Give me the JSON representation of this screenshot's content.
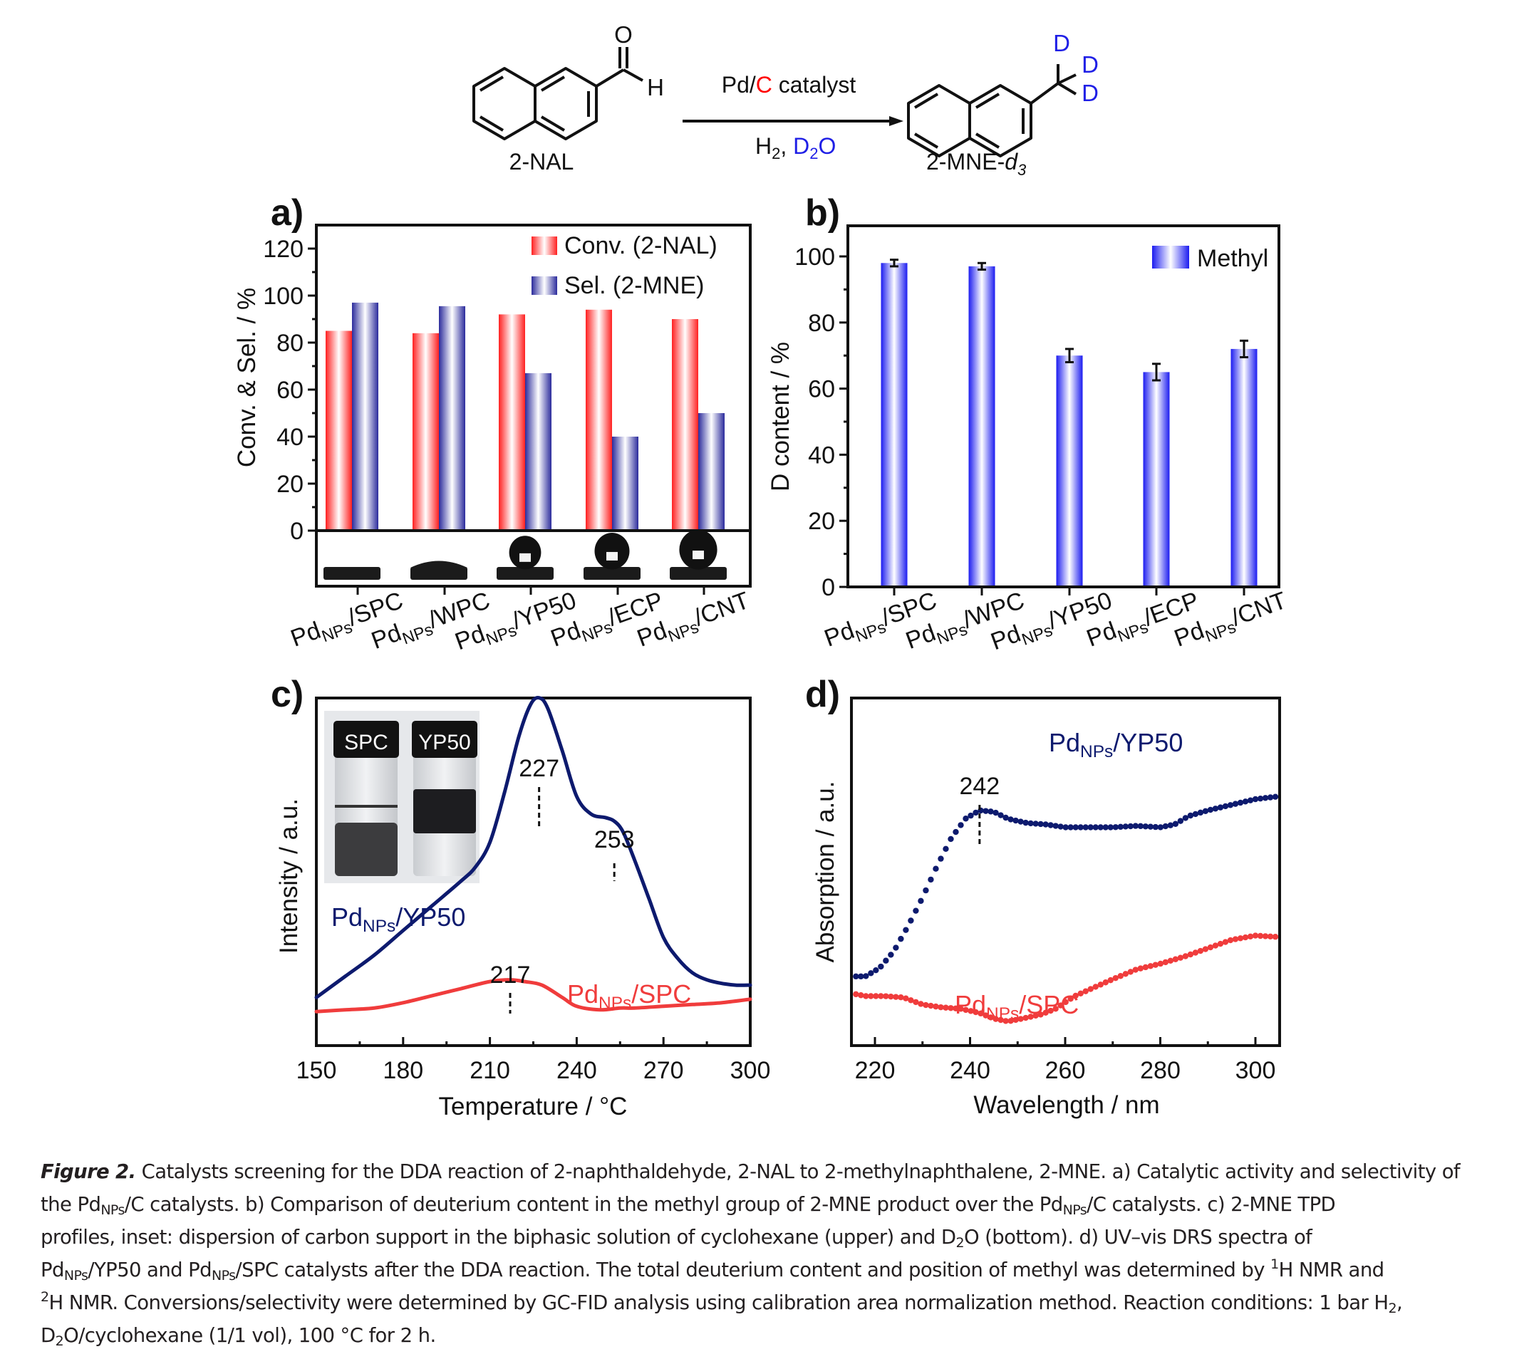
{
  "scheme": {
    "reactant_label": "2-NAL",
    "reactant_atoms": {
      "O": "O",
      "H": "H"
    },
    "product_label_main": "2-MNE-",
    "product_label_italic": "d",
    "product_label_sub": "3",
    "product_atoms": [
      "D",
      "D",
      "D"
    ],
    "arrow_top": {
      "part1": "Pd/",
      "part2": "C",
      "part3": " catalyst"
    },
    "arrow_bottom": {
      "h": "H",
      "h_sub": "2",
      "comma": ", ",
      "d": "D",
      "d_sub": "2",
      "o": "O"
    },
    "colors": {
      "carbon_red": "#ff0000",
      "deuterium_blue": "#1f1fe6"
    }
  },
  "panel_labels": {
    "a": "a)",
    "b": "b)",
    "c": "c)",
    "d": "d)"
  },
  "chart_data": [
    {
      "id": "a",
      "type": "bar",
      "title": "",
      "xlabel": "",
      "ylabel": "Conv. & Sel. / %",
      "ylim": [
        0,
        130
      ],
      "yticks": [
        0,
        20,
        40,
        60,
        80,
        100,
        120
      ],
      "categories": [
        {
          "main": "Pd",
          "sub": "NPs",
          "support": "/SPC"
        },
        {
          "main": "Pd",
          "sub": "NPs",
          "support": "/WPC"
        },
        {
          "main": "Pd",
          "sub": "NPs",
          "support": "/YP50"
        },
        {
          "main": "Pd",
          "sub": "NPs",
          "support": "/ECP"
        },
        {
          "main": "Pd",
          "sub": "NPs",
          "support": "/CNT"
        }
      ],
      "series": [
        {
          "name": "Conv. (2-NAL)",
          "color": "#ff2a2a",
          "values": [
            85,
            84,
            92,
            94,
            90
          ]
        },
        {
          "name": "Sel. (2-MNE)",
          "color": "#2b2b9c",
          "values": [
            97,
            95.5,
            67,
            40,
            50
          ]
        }
      ],
      "legend": "top-right",
      "inset": "water contact angle droplet images below axis, increasing hydrophobicity from SPC to CNT",
      "droplet_contact": [
        0,
        0.25,
        0.6,
        0.75,
        0.9
      ]
    },
    {
      "id": "b",
      "type": "bar",
      "title": "",
      "xlabel": "",
      "ylabel": "D content / %",
      "ylim": [
        0,
        109
      ],
      "yticks": [
        0,
        20,
        40,
        60,
        80,
        100
      ],
      "categories": [
        {
          "main": "Pd",
          "sub": "NPs",
          "support": "/SPC"
        },
        {
          "main": "Pd",
          "sub": "NPs",
          "support": "/WPC"
        },
        {
          "main": "Pd",
          "sub": "NPs",
          "support": "/YP50"
        },
        {
          "main": "Pd",
          "sub": "NPs",
          "support": "/ECP"
        },
        {
          "main": "Pd",
          "sub": "NPs",
          "support": "/CNT"
        }
      ],
      "series": [
        {
          "name": "Methyl",
          "color": "#1c1cf0",
          "values": [
            98,
            97,
            70,
            65,
            72
          ],
          "errors": [
            1,
            1,
            2,
            2.5,
            2.5
          ]
        }
      ],
      "legend": "top-right"
    },
    {
      "id": "c",
      "type": "line",
      "xlabel": "Temperature / °C",
      "ylabel": "Intensity / a.u.",
      "xlim": [
        150,
        300
      ],
      "xticks": [
        150,
        180,
        210,
        240,
        270,
        300
      ],
      "ylim": [
        0,
        100
      ],
      "series": [
        {
          "name": "YP50",
          "label": {
            "main": "Pd",
            "sub": "NPs",
            "support": "/YP50"
          },
          "color": "#0d1a6e",
          "x": [
            150,
            160,
            170,
            180,
            190,
            200,
            205,
            210,
            215,
            220,
            224,
            227,
            230,
            235,
            240,
            245,
            250,
            253,
            256,
            260,
            265,
            270,
            275,
            280,
            285,
            290,
            295,
            300
          ],
          "y": [
            8,
            14,
            20,
            27,
            34,
            41,
            45,
            52,
            66,
            82,
            91,
            93,
            90,
            78,
            65,
            60,
            59,
            58,
            55,
            47,
            36,
            25,
            19,
            15,
            13,
            12,
            11.5,
            11.5
          ]
        },
        {
          "name": "SPC",
          "label": {
            "main": "Pd",
            "sub": "NPs",
            "support": "/SPC"
          },
          "color": "#f03c3c",
          "x": [
            150,
            160,
            170,
            180,
            190,
            200,
            210,
            217,
            222,
            228,
            235,
            240,
            248,
            255,
            260,
            270,
            280,
            290,
            300
          ],
          "y": [
            4,
            4.5,
            5,
            6.5,
            8.5,
            10.5,
            12.5,
            13,
            12.5,
            11.5,
            8,
            5.5,
            4.5,
            5,
            5,
            5.5,
            6,
            6.5,
            7.5
          ]
        }
      ],
      "annotations": [
        {
          "text": "227",
          "x": 227
        },
        {
          "text": "253",
          "x": 253
        },
        {
          "text": "217",
          "x": 217
        }
      ],
      "inset": {
        "vial_labels": [
          "SPC",
          "YP50"
        ]
      }
    },
    {
      "id": "d",
      "type": "scatter",
      "xlabel": "Wavelength / nm",
      "ylabel": "Absorption / a.u.",
      "xlim": [
        215,
        305
      ],
      "xticks": [
        220,
        240,
        260,
        280,
        300
      ],
      "ylim": [
        0,
        100
      ],
      "series": [
        {
          "name": "YP50",
          "label": {
            "main": "Pd",
            "sub": "NPs",
            "support": "/YP50"
          },
          "color": "#0d1a6e",
          "x": [
            215,
            218,
            221,
            224,
            227,
            230,
            233,
            236,
            239,
            242,
            245,
            248,
            252,
            256,
            260,
            265,
            270,
            275,
            280,
            283,
            286,
            290,
            295,
            300,
            305
          ],
          "y": [
            17,
            17,
            20,
            26,
            35,
            45,
            56,
            66,
            73,
            76,
            75.5,
            73,
            71.5,
            71,
            70,
            70,
            70,
            70.5,
            70,
            71,
            74,
            76,
            78,
            80,
            81
          ]
        },
        {
          "name": "SPC",
          "label": {
            "main": "Pd",
            "sub": "NPs",
            "support": "/SPC"
          },
          "color": "#f03c3c",
          "x": [
            215,
            218,
            222,
            226,
            230,
            234,
            238,
            242,
            245,
            248,
            251,
            255,
            258,
            262,
            266,
            270,
            275,
            280,
            285,
            290,
            295,
            300,
            305
          ],
          "y": [
            11,
            10,
            10,
            9.5,
            7,
            6,
            5.5,
            4,
            2,
            1,
            2,
            3.5,
            5.5,
            10,
            13,
            16,
            19.5,
            21.5,
            24,
            27,
            30,
            31.5,
            31
          ]
        }
      ],
      "annotations": [
        {
          "text": "242",
          "x": 242
        }
      ]
    }
  ],
  "caption": {
    "fig_label": "Figure 2.",
    "l1": " Catalysts screening for the DDA reaction of 2-naphthaldehyde, 2-NAL to 2-methylnaphthalene, 2-MNE. a) Catalytic activity and selectivity of",
    "l2a": "the Pd",
    "nps": "NPs",
    "l2b": "/C catalysts. b) Comparison of deuterium content in the methyl group of 2-MNE product over the Pd",
    "l2c": "/C catalysts. c) 2-MNE TPD",
    "l3a": "profiles, inset: dispersion of carbon support in the biphasic solution of cyclohexane (upper) and D",
    "two": "2",
    "l3b": "O (bottom). d) UV–vis DRS spectra of",
    "l4a": "Pd",
    "l4b": "/YP50 and Pd",
    "l4c": "/SPC catalysts after the DDA reaction. The total deuterium content and position of methyl was determined by ",
    "one": "1",
    "l4d": "H NMR and",
    "l5a": "H NMR. Conversions/selectivity were determined by GC-FID analysis using calibration area normalization method. Reaction conditions: 1 bar H",
    "l5b": ",",
    "l6a": "D",
    "l6b": "O/cyclohexane (1/1 vol), 100 °C for 2 h."
  }
}
